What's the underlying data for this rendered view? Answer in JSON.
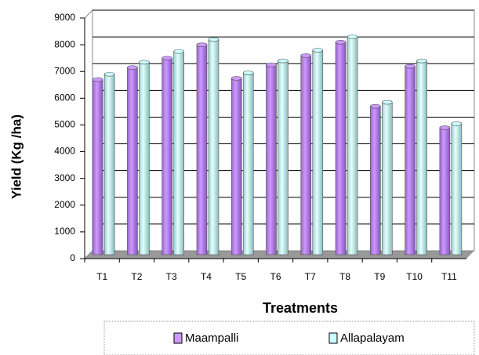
{
  "chart_data": {
    "type": "bar",
    "x_label": "Treatments",
    "y_label": "Yield (Kg /ha)",
    "categories": [
      "T1",
      "T2",
      "T3",
      "T4",
      "T5",
      "T6",
      "T7",
      "T8",
      "T9",
      "T10",
      "T11"
    ],
    "series": [
      {
        "name": "Maampalli",
        "color": "#cc99ff",
        "values": [
          6550,
          7000,
          7350,
          7850,
          6600,
          7100,
          7450,
          7950,
          5550,
          7050,
          4750
        ]
      },
      {
        "name": "Allapalayam",
        "color": "#ccffff",
        "values": [
          6750,
          7200,
          7600,
          8050,
          6800,
          7250,
          7650,
          8150,
          5700,
          7250,
          4900
        ]
      }
    ],
    "ylim": [
      0,
      9000
    ],
    "yticks": [
      0,
      1000,
      2000,
      3000,
      4000,
      5000,
      6000,
      7000,
      8000,
      9000
    ],
    "grid": true,
    "legend": "bottom"
  }
}
